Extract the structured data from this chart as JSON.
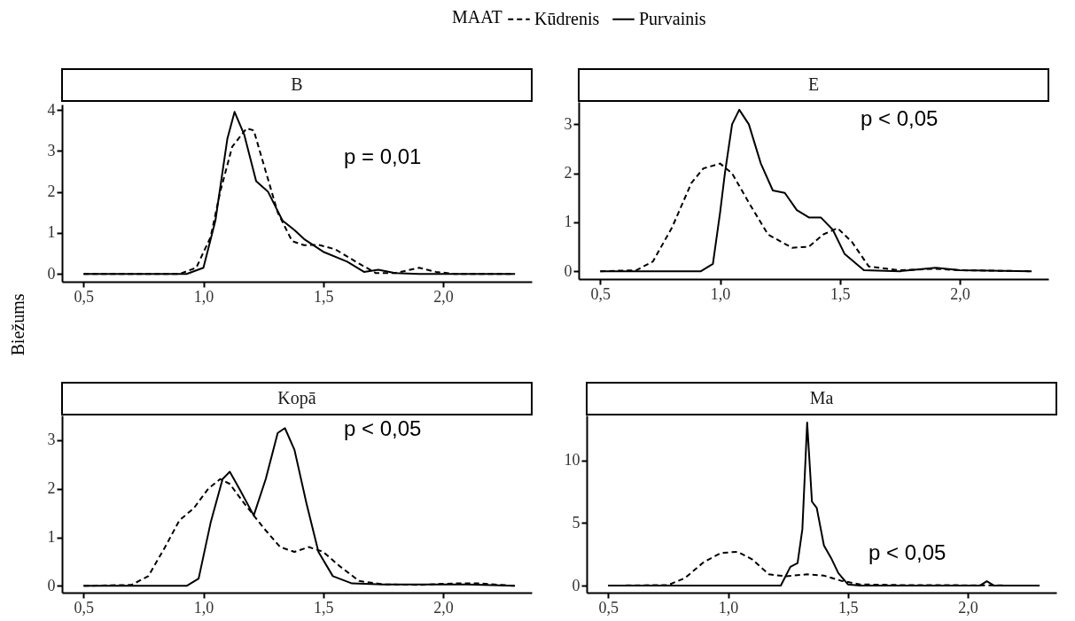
{
  "chart_data": [
    {
      "type": "line",
      "title": "B",
      "ylabel": "Biežums",
      "legend_title": "MAAT",
      "legend": "top",
      "xlim": [
        0.41,
        2.37
      ],
      "ylim": [
        -0.19,
        4.13
      ],
      "xticks": [
        {
          "value": 0.5,
          "label": "0,5"
        },
        {
          "value": 1.0,
          "label": "1,0"
        },
        {
          "value": 1.5,
          "label": "1,5"
        },
        {
          "value": 2.0,
          "label": "2,0"
        }
      ],
      "yticks": [
        0,
        1,
        2,
        3,
        4
      ],
      "annotations": [
        "p = 0,01"
      ],
      "series": [
        {
          "name": "Kūdrenis",
          "color": "#000000",
          "line_style": "dashed",
          "x": [
            0.5,
            0.9,
            0.97,
            1.03,
            1.07,
            1.12,
            1.18,
            1.21,
            1.25,
            1.31,
            1.37,
            1.42,
            1.48,
            1.55,
            1.65,
            1.72,
            1.8,
            1.9,
            1.97,
            2.05,
            2.3
          ],
          "values": [
            0,
            0,
            0.15,
            0.9,
            2.0,
            3.1,
            3.55,
            3.5,
            2.7,
            1.5,
            0.8,
            0.7,
            0.71,
            0.6,
            0.25,
            0.02,
            0.02,
            0.15,
            0.05,
            0,
            0
          ]
        },
        {
          "name": "Purvainis",
          "color": "#000000",
          "line_style": "solid",
          "x": [
            0.5,
            0.93,
            1.0,
            1.05,
            1.1,
            1.13,
            1.17,
            1.22,
            1.27,
            1.33,
            1.38,
            1.42,
            1.5,
            1.6,
            1.67,
            1.73,
            1.8,
            1.9,
            2.3
          ],
          "values": [
            0,
            0,
            0.15,
            1.3,
            3.3,
            3.95,
            3.4,
            2.26,
            2.0,
            1.3,
            1.07,
            0.85,
            0.54,
            0.3,
            0.05,
            0.1,
            0.02,
            0,
            0
          ]
        }
      ]
    },
    {
      "type": "line",
      "title": "E",
      "xlim": [
        0.41,
        2.37
      ],
      "ylim": [
        -0.16,
        3.46
      ],
      "xticks": [
        {
          "value": 0.5,
          "label": "0,5"
        },
        {
          "value": 1.0,
          "label": "1,0"
        },
        {
          "value": 1.5,
          "label": "1,5"
        },
        {
          "value": 2.0,
          "label": "2,0"
        }
      ],
      "yticks": [
        0,
        1,
        2,
        3
      ],
      "annotations": [
        "p < 0,05"
      ],
      "series": [
        {
          "name": "Kūdrenis",
          "color": "#000000",
          "line_style": "dashed",
          "x": [
            0.5,
            0.65,
            0.72,
            0.8,
            0.88,
            0.93,
            1.0,
            1.05,
            1.12,
            1.2,
            1.3,
            1.37,
            1.43,
            1.49,
            1.55,
            1.62,
            1.75,
            1.9,
            2.0,
            2.3
          ],
          "values": [
            0,
            0.02,
            0.2,
            0.9,
            1.8,
            2.1,
            2.2,
            2.0,
            1.4,
            0.75,
            0.48,
            0.5,
            0.75,
            0.88,
            0.6,
            0.1,
            0.02,
            0.05,
            0.02,
            0
          ]
        },
        {
          "name": "Purvainis",
          "color": "#000000",
          "line_style": "solid",
          "x": [
            0.5,
            0.92,
            0.97,
            1.0,
            1.02,
            1.05,
            1.08,
            1.12,
            1.17,
            1.22,
            1.27,
            1.32,
            1.37,
            1.42,
            1.47,
            1.52,
            1.6,
            1.75,
            1.9,
            2.0,
            2.3
          ],
          "values": [
            0,
            0,
            0.15,
            1.2,
            2.0,
            3.0,
            3.3,
            3.0,
            2.2,
            1.65,
            1.6,
            1.25,
            1.1,
            1.1,
            0.85,
            0.35,
            0.02,
            0,
            0.07,
            0.02,
            0
          ]
        }
      ]
    },
    {
      "type": "line",
      "title": "Kopā",
      "xlim": [
        0.41,
        2.37
      ],
      "ylim": [
        -0.14,
        3.51
      ],
      "xticks": [
        {
          "value": 0.5,
          "label": "0,5"
        },
        {
          "value": 1.0,
          "label": "1,0"
        },
        {
          "value": 1.5,
          "label": "1,5"
        },
        {
          "value": 2.0,
          "label": "2,0"
        }
      ],
      "yticks": [
        0,
        1,
        2,
        3
      ],
      "annotations": [
        "p < 0,05"
      ],
      "series": [
        {
          "name": "Kūdrenis",
          "color": "#000000",
          "line_style": "dashed",
          "x": [
            0.5,
            0.7,
            0.77,
            0.84,
            0.9,
            0.96,
            1.02,
            1.07,
            1.11,
            1.17,
            1.25,
            1.32,
            1.38,
            1.44,
            1.5,
            1.57,
            1.65,
            1.75,
            1.9,
            2.05,
            2.15,
            2.3
          ],
          "values": [
            0,
            0.02,
            0.2,
            0.8,
            1.35,
            1.6,
            2.0,
            2.2,
            2.1,
            1.7,
            1.2,
            0.8,
            0.7,
            0.8,
            0.7,
            0.4,
            0.1,
            0.03,
            0.02,
            0.05,
            0.05,
            0
          ]
        },
        {
          "name": "Purvainis",
          "color": "#000000",
          "line_style": "solid",
          "x": [
            0.5,
            0.93,
            0.98,
            1.03,
            1.08,
            1.11,
            1.15,
            1.21,
            1.26,
            1.31,
            1.34,
            1.38,
            1.43,
            1.48,
            1.54,
            1.62,
            1.75,
            1.9,
            2.1,
            2.3
          ],
          "values": [
            0,
            0,
            0.15,
            1.3,
            2.2,
            2.35,
            2.0,
            1.45,
            2.2,
            3.15,
            3.25,
            2.8,
            1.7,
            0.7,
            0.2,
            0.05,
            0.03,
            0.03,
            0.03,
            0
          ]
        }
      ]
    },
    {
      "type": "line",
      "title": "Ma",
      "xlim": [
        0.41,
        2.37
      ],
      "ylim": [
        -0.56,
        13.57
      ],
      "xticks": [
        {
          "value": 0.5,
          "label": "0,5"
        },
        {
          "value": 1.0,
          "label": "1,0"
        },
        {
          "value": 1.5,
          "label": "1,5"
        },
        {
          "value": 2.0,
          "label": "2,0"
        }
      ],
      "yticks": [
        0,
        5,
        10
      ],
      "annotations": [
        "p < 0,05"
      ],
      "series": [
        {
          "name": "Kūdrenis",
          "color": "#000000",
          "line_style": "dashed",
          "x": [
            0.5,
            0.75,
            0.82,
            0.9,
            0.97,
            1.04,
            1.1,
            1.17,
            1.24,
            1.33,
            1.4,
            1.47,
            1.55,
            1.7,
            2.0,
            2.3
          ],
          "values": [
            0,
            0.05,
            0.6,
            1.9,
            2.6,
            2.7,
            2.1,
            0.9,
            0.75,
            0.9,
            0.8,
            0.4,
            0.1,
            0.05,
            0.03,
            0
          ]
        },
        {
          "name": "Purvainis",
          "color": "#000000",
          "line_style": "solid",
          "x": [
            0.5,
            1.22,
            1.26,
            1.29,
            1.31,
            1.33,
            1.35,
            1.37,
            1.4,
            1.43,
            1.46,
            1.5,
            1.55,
            2.05,
            2.08,
            2.11,
            2.3
          ],
          "values": [
            0,
            0,
            1.5,
            1.8,
            4.5,
            13.0,
            6.7,
            6.2,
            3.2,
            2.2,
            1.0,
            0.1,
            0,
            0,
            0.35,
            0,
            0
          ]
        }
      ]
    }
  ]
}
